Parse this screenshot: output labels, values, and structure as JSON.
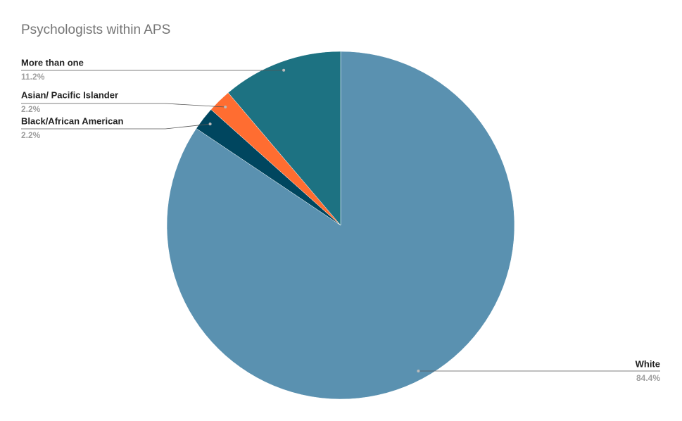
{
  "chart_data": {
    "type": "pie",
    "title": "Psychologists within APS",
    "categories": [
      "White",
      "Black/African American",
      "Asian/ Pacific Islander",
      "More than one"
    ],
    "values": [
      84.4,
      2.2,
      2.2,
      11.2
    ],
    "value_labels": [
      "84.4%",
      "2.2%",
      "2.2%",
      "11.2%"
    ],
    "colors": [
      "#5a91b0",
      "#00465f",
      "#ff6d31",
      "#1d7282"
    ]
  }
}
